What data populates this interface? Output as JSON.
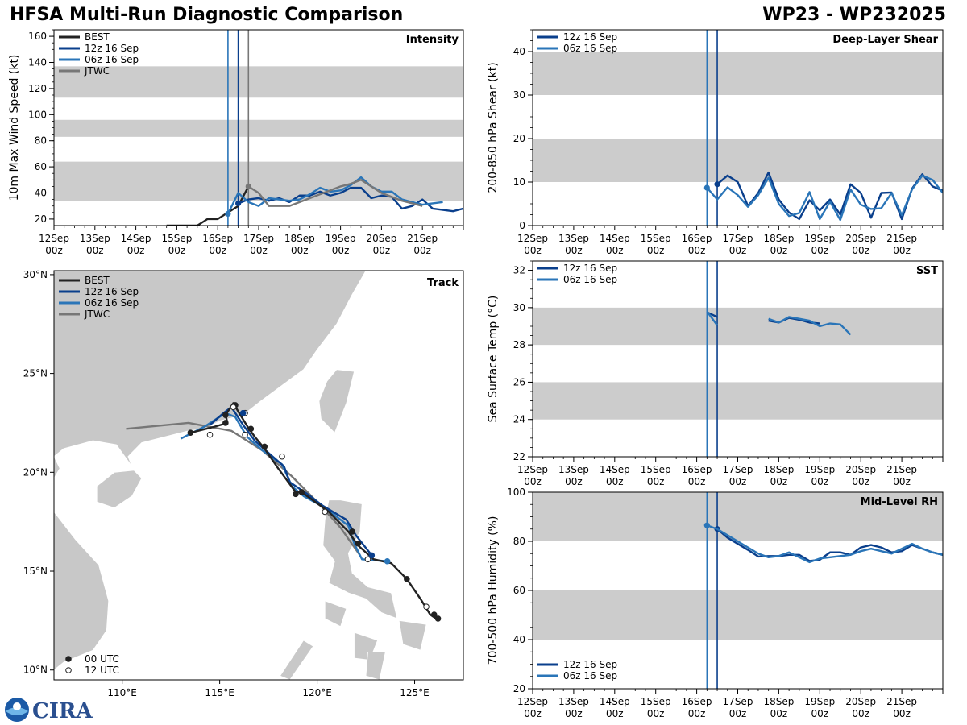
{
  "header": {
    "title": "HFSA Multi-Run Diagnostic Comparison",
    "storm": "WP23 - WP232025"
  },
  "colors": {
    "best": "#222222",
    "run12": "#0a3f8c",
    "run06": "#2a75b8",
    "jtwc": "#777777",
    "band": "#cccccc",
    "land": "#c8c8c8",
    "border": "#ffffff"
  },
  "logos": {
    "noaa": "noaa-logo-icon",
    "cira": "CIRA"
  },
  "time_ticks": [
    "12Sep",
    "13Sep",
    "14Sep",
    "15Sep",
    "16Sep",
    "17Sep",
    "18Sep",
    "19Sep",
    "20Sep",
    "21Sep"
  ],
  "time_hour": "00z",
  "chart_data": [
    {
      "id": "intensity",
      "type": "line",
      "title": "Intensity",
      "ylabel": "10m Max Wind Speed (kt)",
      "xlim": [
        0,
        10
      ],
      "ylim": [
        15,
        165
      ],
      "yticks": [
        20,
        40,
        60,
        80,
        100,
        120,
        140,
        160
      ],
      "bands": [
        [
          34,
          64
        ],
        [
          83,
          96
        ],
        [
          113,
          137
        ]
      ],
      "vlines": [
        {
          "x": 4.25,
          "color": "run06"
        },
        {
          "x": 4.5,
          "color": "run12"
        },
        {
          "x": 4.75,
          "color": "jtwc"
        }
      ],
      "legend": [
        {
          "label": "BEST",
          "color": "best"
        },
        {
          "label": "12z 16 Sep",
          "color": "run12"
        },
        {
          "label": "06z 16 Sep",
          "color": "run06"
        },
        {
          "label": "JTWC",
          "color": "jtwc"
        }
      ],
      "series": [
        {
          "name": "BEST",
          "color": "best",
          "x": [
            2.75,
            3.0,
            3.25,
            3.5,
            3.75,
            4.0,
            4.25,
            4.5,
            4.75
          ],
          "y": [
            15,
            15,
            15,
            15,
            20,
            20,
            25,
            30,
            45
          ]
        },
        {
          "name": "12z 16 Sep",
          "color": "run12",
          "marker": true,
          "x": [
            4.5,
            4.75,
            5.0,
            5.25,
            5.5,
            5.75,
            6.0,
            6.25,
            6.5,
            6.75,
            7.0,
            7.25,
            7.5,
            7.75,
            8.0,
            8.25,
            8.5,
            8.75,
            9.0,
            9.25,
            9.5,
            9.75,
            10.0
          ],
          "y": [
            32,
            35,
            36,
            34,
            36,
            33,
            38,
            38,
            41,
            38,
            40,
            44,
            44,
            36,
            38,
            37,
            28,
            30,
            35,
            28,
            27,
            26,
            28
          ]
        },
        {
          "name": "06z 16 Sep",
          "color": "run06",
          "marker": true,
          "x": [
            4.25,
            4.5,
            4.75,
            5.0,
            5.25,
            5.5,
            5.75,
            6.0,
            6.25,
            6.5,
            6.75,
            7.0,
            7.25,
            7.5,
            7.75,
            8.0,
            8.25,
            8.5,
            8.75,
            9.0,
            9.25,
            9.5
          ],
          "y": [
            24,
            40,
            33,
            30,
            36,
            35,
            34,
            35,
            39,
            44,
            41,
            42,
            46,
            52,
            45,
            41,
            41,
            35,
            33,
            31,
            32,
            33
          ]
        },
        {
          "name": "JTWC",
          "color": "jtwc",
          "marker": true,
          "x": [
            4.75,
            5.0,
            5.25,
            5.5,
            5.75,
            6.0,
            6.25,
            6.5,
            6.75,
            7.0,
            7.25,
            7.5,
            7.75,
            8.0,
            8.25,
            8.5,
            8.75,
            9.0
          ],
          "y": [
            45,
            40,
            30,
            30,
            30,
            33,
            36,
            39,
            42,
            45,
            47,
            50,
            45,
            40,
            37,
            34,
            32,
            30
          ]
        }
      ]
    },
    {
      "id": "shear",
      "type": "line",
      "title": "Deep-Layer Shear",
      "ylabel": "200-850 hPa Shear (kt)",
      "xlim": [
        0,
        10
      ],
      "ylim": [
        0,
        45
      ],
      "yticks": [
        0,
        10,
        20,
        30,
        40
      ],
      "bands": [
        [
          10,
          20
        ],
        [
          30,
          40
        ]
      ],
      "vlines": [
        {
          "x": 4.25,
          "color": "run06"
        },
        {
          "x": 4.5,
          "color": "run12"
        }
      ],
      "legend": [
        {
          "label": "12z 16 Sep",
          "color": "run12"
        },
        {
          "label": "06z 16 Sep",
          "color": "run06"
        }
      ],
      "series": [
        {
          "name": "12z 16 Sep",
          "color": "run12",
          "marker": true,
          "x": [
            4.5,
            4.75,
            5.0,
            5.25,
            5.5,
            5.75,
            6.0,
            6.25,
            6.5,
            6.75,
            7.0,
            7.25,
            7.5,
            7.75,
            8.0,
            8.25,
            8.5,
            8.75,
            9.0,
            9.25,
            9.5,
            9.75,
            10.0
          ],
          "y": [
            9.5,
            11.5,
            10,
            4.5,
            7.5,
            12.2,
            6,
            3,
            1.5,
            5.8,
            3.5,
            6,
            2.5,
            9.5,
            7.5,
            1.8,
            7.5,
            7.6,
            1.5,
            8.5,
            11.8,
            9,
            8
          ]
        },
        {
          "name": "06z 16 Sep",
          "color": "run06",
          "marker": true,
          "x": [
            4.25,
            4.5,
            4.75,
            5.0,
            5.25,
            5.5,
            5.75,
            6.0,
            6.25,
            6.5,
            6.75,
            7.0,
            7.25,
            7.5,
            7.75,
            8.0,
            8.25,
            8.5,
            8.75,
            9.0,
            9.25,
            9.5,
            9.75,
            10.0
          ],
          "y": [
            8.7,
            6,
            8.8,
            7,
            4.3,
            7,
            11,
            5,
            2.2,
            2.9,
            7.7,
            1.5,
            5.5,
            1.3,
            8.3,
            4.8,
            3.8,
            4,
            7.5,
            2.4,
            8.3,
            11.5,
            10.5,
            7.5
          ]
        }
      ]
    },
    {
      "id": "sst",
      "type": "line",
      "title": "SST",
      "ylabel": "Sea Surface Temp (°C)",
      "xlim": [
        0,
        10
      ],
      "ylim": [
        22,
        32.5
      ],
      "yticks": [
        22,
        24,
        26,
        28,
        30,
        32
      ],
      "bands": [
        [
          24,
          26
        ],
        [
          28,
          30
        ]
      ],
      "vlines": [
        {
          "x": 4.25,
          "color": "run06"
        },
        {
          "x": 4.5,
          "color": "run12"
        }
      ],
      "legend": [
        {
          "label": "12z 16 Sep",
          "color": "run12"
        },
        {
          "label": "06z 16 Sep",
          "color": "run06"
        }
      ],
      "series": [
        {
          "name": "12z 16 Sep",
          "color": "run12",
          "segments": [
            {
              "x": [
                4.25,
                4.5
              ],
              "y": [
                29.75,
                29.5
              ]
            },
            {
              "x": [
                5.75,
                6.0,
                6.25,
                6.5,
                6.75,
                7.0
              ],
              "y": [
                29.3,
                29.2,
                29.45,
                29.35,
                29.2,
                29.15
              ]
            }
          ]
        },
        {
          "name": "06z 16 Sep",
          "color": "run06",
          "segments": [
            {
              "x": [
                4.25,
                4.5
              ],
              "y": [
                29.8,
                29.05
              ]
            },
            {
              "x": [
                5.75,
                6.0,
                6.25,
                6.5,
                6.75,
                7.0,
                7.25,
                7.5,
                7.75
              ],
              "y": [
                29.4,
                29.2,
                29.5,
                29.4,
                29.3,
                29.0,
                29.15,
                29.1,
                28.55
              ]
            }
          ]
        }
      ]
    },
    {
      "id": "rh",
      "type": "line",
      "title": "Mid-Level RH",
      "ylabel": "700-500 hPa Humidity (%)",
      "xlim": [
        0,
        10
      ],
      "ylim": [
        20,
        100
      ],
      "yticks": [
        20,
        40,
        60,
        80,
        100
      ],
      "bands": [
        [
          40,
          60
        ],
        [
          80,
          100
        ]
      ],
      "vlines": [
        {
          "x": 4.25,
          "color": "run06"
        },
        {
          "x": 4.5,
          "color": "run12"
        }
      ],
      "legend_pos": "bottom-left",
      "legend": [
        {
          "label": "12z 16 Sep",
          "color": "run12"
        },
        {
          "label": "06z 16 Sep",
          "color": "run06"
        }
      ],
      "series": [
        {
          "name": "12z 16 Sep",
          "color": "run12",
          "marker": true,
          "x": [
            4.5,
            4.75,
            5.0,
            5.25,
            5.5,
            5.75,
            6.0,
            6.25,
            6.5,
            6.75,
            7.0,
            7.25,
            7.5,
            7.75,
            8.0,
            8.25,
            8.5,
            8.75,
            9.0,
            9.25,
            9.5,
            9.75,
            10.0
          ],
          "y": [
            85,
            81.5,
            79,
            76.5,
            73.8,
            74,
            74,
            74.5,
            74.5,
            72,
            72.5,
            75.5,
            75.5,
            74.5,
            77.5,
            78.5,
            77.5,
            75.5,
            76,
            78.5,
            77,
            75.5,
            74.5
          ]
        },
        {
          "name": "06z 16 Sep",
          "color": "run06",
          "marker": true,
          "x": [
            4.25,
            4.5,
            4.75,
            5.0,
            5.25,
            5.5,
            5.75,
            6.0,
            6.25,
            6.5,
            6.75,
            7.0,
            7.25,
            7.5,
            7.75,
            8.0,
            8.25,
            8.5,
            8.75,
            9.0,
            9.25,
            9.5,
            9.75,
            10.0
          ],
          "y": [
            86.5,
            85,
            82.5,
            80,
            77.5,
            75,
            73.5,
            74,
            75.5,
            73.5,
            71.5,
            73,
            73.5,
            74,
            74.5,
            76,
            77,
            76,
            75,
            77,
            79,
            77,
            75.5,
            74.5
          ]
        }
      ]
    },
    {
      "id": "track",
      "type": "scatter",
      "title": "Track",
      "xlim": [
        106.5,
        127.5
      ],
      "ylim": [
        9.5,
        30.2
      ],
      "xticks": [
        110,
        115,
        120,
        125
      ],
      "xtick_labels": [
        "110°E",
        "115°E",
        "120°E",
        "125°E"
      ],
      "yticks": [
        10,
        15,
        20,
        25,
        30
      ],
      "ytick_labels": [
        "10°N",
        "15°N",
        "20°N",
        "25°N",
        "30°N"
      ],
      "legend": [
        {
          "label": "BEST",
          "color": "best"
        },
        {
          "label": "12z 16 Sep",
          "color": "run12"
        },
        {
          "label": "06z 16 Sep",
          "color": "run06"
        },
        {
          "label": "JTWC",
          "color": "jtwc"
        }
      ],
      "marker_legend": [
        {
          "label": "00 UTC",
          "fill": "filled"
        },
        {
          "label": "12 UTC",
          "fill": "open"
        }
      ],
      "series": [
        {
          "name": "BEST",
          "color": "best",
          "lon": [
            126.1,
            125.8,
            125.3,
            124.6,
            123.8,
            122.9,
            122.1,
            121.6,
            120.6,
            119.2,
            118.9,
            118.0,
            117.3,
            116.8,
            116.5,
            116.0,
            115.7,
            115.3,
            115.4,
            114.7,
            113.5
          ],
          "lat": [
            12.6,
            12.8,
            13.6,
            14.6,
            15.4,
            15.6,
            16.3,
            17.0,
            18.0,
            19.0,
            19.0,
            20.2,
            21.2,
            21.8,
            22.2,
            23.0,
            23.5,
            22.9,
            22.5,
            22.3,
            22.0
          ],
          "markers": [
            [
              126.2,
              12.6,
              "filled"
            ],
            [
              126.0,
              12.8,
              "filled"
            ],
            [
              125.6,
              13.2,
              "open"
            ],
            [
              124.6,
              14.6,
              "filled"
            ],
            [
              122.6,
              15.6,
              "open"
            ],
            [
              122.1,
              16.4,
              "filled"
            ],
            [
              121.8,
              17.0,
              "filled"
            ],
            [
              120.4,
              18.0,
              "open"
            ],
            [
              119.2,
              19.0,
              "filled"
            ],
            [
              118.9,
              18.9,
              "filled"
            ],
            [
              118.2,
              20.8,
              "open"
            ],
            [
              117.3,
              21.3,
              "filled"
            ],
            [
              116.6,
              22.2,
              "filled"
            ],
            [
              115.8,
              23.4,
              "filled"
            ],
            [
              115.3,
              22.9,
              "filled"
            ],
            [
              115.3,
              22.5,
              "filled"
            ],
            [
              113.5,
              22.0,
              "filled"
            ],
            [
              114.5,
              21.9,
              "open"
            ],
            [
              116.3,
              21.9,
              "open"
            ],
            [
              115.7,
              23.3,
              "open"
            ],
            [
              116.3,
              23.0,
              "open"
            ]
          ]
        },
        {
          "name": "12z 16 Sep",
          "color": "run12",
          "lon": [
            122.8,
            122.0,
            121.5,
            120.3,
            119.5,
            118.6,
            118.3,
            117.6,
            116.8,
            116.2,
            115.6,
            115.2,
            114.5
          ],
          "lat": [
            15.8,
            16.8,
            17.6,
            18.3,
            18.9,
            19.5,
            20.3,
            20.9,
            21.6,
            22.4,
            23.3,
            23.0,
            22.4
          ],
          "markers": [
            [
              122.8,
              15.8,
              "filled"
            ],
            [
              116.2,
              23.0,
              "filled"
            ]
          ]
        },
        {
          "name": "06z 16 Sep",
          "color": "run06",
          "lon": [
            123.6,
            122.3,
            121.9,
            121.6,
            120.4,
            119.3,
            118.7,
            118.2,
            117.2,
            116.4,
            115.8,
            115.3,
            114.2,
            113.0
          ],
          "lat": [
            15.5,
            15.6,
            16.4,
            17.3,
            18.2,
            18.8,
            19.3,
            20.4,
            21.1,
            21.8,
            22.8,
            23.0,
            22.3,
            21.7
          ],
          "markers": [
            [
              123.6,
              15.5,
              "filled"
            ]
          ]
        },
        {
          "name": "JTWC",
          "color": "jtwc",
          "lon": [
            122.2,
            121.2,
            120.1,
            118.7,
            117.2,
            115.6,
            113.4,
            110.2
          ],
          "lat": [
            15.8,
            17.2,
            18.4,
            19.8,
            21.1,
            22.1,
            22.5,
            22.2
          ],
          "markers": []
        }
      ]
    }
  ]
}
